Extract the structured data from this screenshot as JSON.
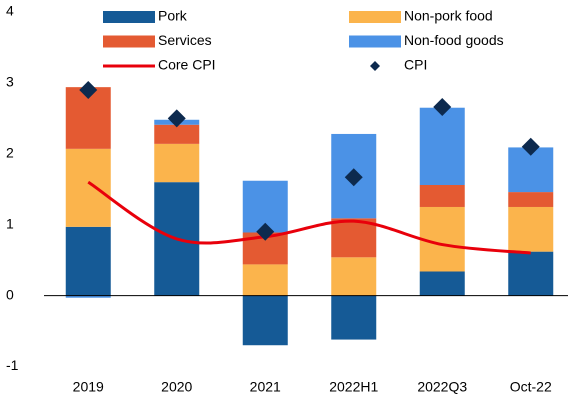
{
  "chart_data": {
    "type": "bar",
    "stacked": true,
    "categories": [
      "2019",
      "2020",
      "2021",
      "2022H1",
      "2022Q3",
      "Oct-22"
    ],
    "series": [
      {
        "name": "Pork",
        "type": "bar",
        "color": "#155a96",
        "values": [
          0.97,
          1.6,
          -0.7,
          -0.62,
          0.34,
          0.62
        ]
      },
      {
        "name": "Non-pork food",
        "type": "bar",
        "color": "#fbb44c",
        "values": [
          1.1,
          0.54,
          0.44,
          0.54,
          0.91,
          0.63
        ]
      },
      {
        "name": "Services",
        "type": "bar",
        "color": "#e45a32",
        "values": [
          0.87,
          0.27,
          0.45,
          0.55,
          0.31,
          0.21
        ]
      },
      {
        "name": "Non-food goods",
        "type": "bar",
        "color": "#4b92e6",
        "values": [
          -0.03,
          0.07,
          0.73,
          1.19,
          1.09,
          0.63
        ]
      },
      {
        "name": "Core CPI",
        "type": "line",
        "color": "#e8000b",
        "values": [
          1.6,
          0.8,
          0.83,
          1.05,
          0.72,
          0.6
        ]
      },
      {
        "name": "CPI",
        "type": "scatter",
        "color": "#0d2a4e",
        "values": [
          2.9,
          2.5,
          0.9,
          1.67,
          2.66,
          2.1
        ]
      }
    ],
    "ylim": [
      -1,
      4
    ],
    "yticks": [
      -1,
      0,
      1,
      2,
      3,
      4
    ],
    "grid": false,
    "legend": "top"
  }
}
